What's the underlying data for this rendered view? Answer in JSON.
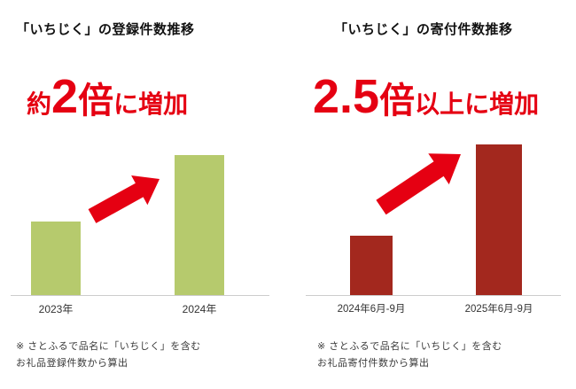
{
  "background": "#ffffff",
  "chart_data": [
    {
      "type": "bar",
      "title": "「いちじく」の登録件数推移",
      "headline": {
        "prefix": "約",
        "multiplier": "2",
        "unit_word": "倍",
        "suffix": "に増加"
      },
      "categories": [
        "2023年",
        "2024年"
      ],
      "values": [
        1,
        1.9
      ],
      "ylim": [
        0,
        2
      ],
      "grid": false,
      "legend": false,
      "bar_color": "#b6ca6d",
      "accent_color": "#e50012",
      "footnote": [
        "※ さとふるで品名に「いちじく」を含む",
        "お礼品登録件数から算出"
      ]
    },
    {
      "type": "bar",
      "title": "「いちじく」の寄付件数推移",
      "headline": {
        "prefix": "",
        "multiplier": "2.5",
        "unit_word": "倍",
        "suffix": "以上に増加"
      },
      "categories": [
        "2024年6月-9月",
        "2025年6月-9月"
      ],
      "values": [
        1,
        2.55
      ],
      "ylim": [
        0,
        2.6
      ],
      "grid": false,
      "legend": false,
      "bar_color": "#a3281e",
      "accent_color": "#e50012",
      "footnote": [
        "※ さとふるで品名に「いちじく」を含む",
        "お礼品寄付件数から算出"
      ]
    }
  ]
}
